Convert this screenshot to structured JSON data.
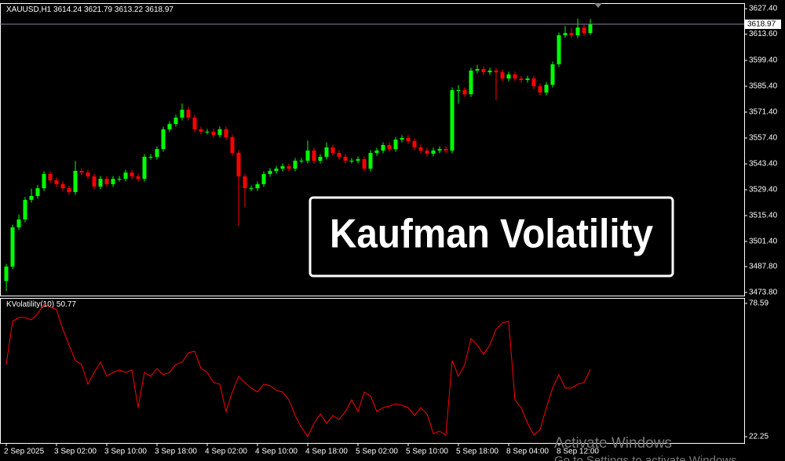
{
  "chart_data": [
    {
      "type": "candlestick",
      "title": "XAUUSD,H1",
      "annotation": "Kaufman Volatility",
      "up_color": "#00ff00",
      "down_color": "#ff0000",
      "grid": false,
      "ylim": [
        3472.1,
        3630.4
      ],
      "yticks": [
        {
          "value": 3627.4,
          "label": "3627.40"
        },
        {
          "value": 3613.6,
          "label": "3613.60"
        },
        {
          "value": 3599.4,
          "label": "3599.40"
        },
        {
          "value": 3585.4,
          "label": "3585.40"
        },
        {
          "value": 3571.4,
          "label": "3571.40"
        },
        {
          "value": 3557.4,
          "label": "3557.40"
        },
        {
          "value": 3543.4,
          "label": "3543.40"
        },
        {
          "value": 3529.4,
          "label": "3529.40"
        },
        {
          "value": 3515.4,
          "label": "3515.40"
        },
        {
          "value": 3501.4,
          "label": "3501.40"
        },
        {
          "value": 3487.8,
          "label": "3487.80"
        },
        {
          "value": 3473.8,
          "label": "3473.80"
        }
      ],
      "open": [
        3480.0,
        3487.8,
        3509.0,
        3513.3,
        3523.9,
        3526.0,
        3530.2,
        3537.9,
        3534.5,
        3532.4,
        3530.2,
        3528.1,
        3539.6,
        3538.7,
        3536.6,
        3531.1,
        3535.3,
        3532.4,
        3535.3,
        3535.3,
        3538.7,
        3536.6,
        3535.3,
        3547.2,
        3547.2,
        3551.4,
        3562.1,
        3565.0,
        3568.4,
        3572.7,
        3568.4,
        3562.1,
        3560.8,
        3560.8,
        3559.1,
        3562.1,
        3557.8,
        3549.3,
        3536.6,
        3530.2,
        3530.2,
        3532.4,
        3537.9,
        3539.6,
        3540.8,
        3542.1,
        3540.8,
        3545.1,
        3545.1,
        3550.6,
        3545.1,
        3547.2,
        3552.3,
        3549.3,
        3547.2,
        3545.1,
        3545.1,
        3545.9,
        3540.8,
        3549.3,
        3550.6,
        3553.6,
        3551.4,
        3556.5,
        3557.4,
        3555.7,
        3552.3,
        3550.6,
        3548.9,
        3550.6,
        3551.4,
        3550.6,
        3583.3,
        3583.3,
        3581.1,
        3593.9,
        3594.7,
        3593.0,
        3593.9,
        3593.0,
        3589.6,
        3591.8,
        3589.6,
        3588.8,
        3589.6,
        3585.4,
        3582.0,
        3586.2,
        3597.3,
        3613.0,
        3614.2,
        3613.0,
        3617.2,
        3614.24
      ],
      "high": [
        3489.3,
        3510.5,
        3516.0,
        3525.4,
        3530.0,
        3532.0,
        3539.4,
        3539.4,
        3536.0,
        3533.9,
        3531.7,
        3545.0,
        3541.1,
        3540.2,
        3538.1,
        3536.8,
        3536.8,
        3536.8,
        3536.8,
        3540.2,
        3540.2,
        3538.1,
        3548.7,
        3548.7,
        3552.9,
        3563.6,
        3566.5,
        3569.9,
        3576.0,
        3574.2,
        3569.9,
        3563.6,
        3562.3,
        3562.3,
        3563.6,
        3563.6,
        3559.3,
        3550.8,
        3538.1,
        3531.7,
        3533.9,
        3539.4,
        3541.1,
        3542.3,
        3543.6,
        3543.6,
        3546.6,
        3546.6,
        3556.0,
        3552.1,
        3548.7,
        3555.0,
        3553.8,
        3550.8,
        3548.7,
        3546.6,
        3547.4,
        3547.4,
        3550.8,
        3552.1,
        3555.1,
        3555.1,
        3558.0,
        3558.9,
        3558.9,
        3557.2,
        3553.8,
        3552.1,
        3552.1,
        3552.9,
        3552.9,
        3584.8,
        3586.0,
        3584.8,
        3595.4,
        3597.0,
        3596.2,
        3595.4,
        3595.4,
        3594.5,
        3593.3,
        3593.3,
        3591.1,
        3591.1,
        3591.1,
        3586.9,
        3587.7,
        3598.8,
        3614.5,
        3618.0,
        3617.0,
        3622.0,
        3618.7,
        3621.79
      ],
      "low": [
        3474.5,
        3486.3,
        3507.5,
        3511.8,
        3522.4,
        3524.5,
        3528.7,
        3533.0,
        3530.9,
        3528.7,
        3526.6,
        3526.6,
        3537.2,
        3535.1,
        3529.6,
        3529.6,
        3530.9,
        3530.9,
        3533.8,
        3533.8,
        3535.1,
        3533.8,
        3533.8,
        3545.7,
        3545.7,
        3549.9,
        3560.6,
        3563.5,
        3566.9,
        3566.9,
        3560.6,
        3559.3,
        3559.3,
        3557.6,
        3557.6,
        3556.3,
        3547.8,
        3510.0,
        3520.0,
        3528.7,
        3528.7,
        3530.9,
        3536.4,
        3538.1,
        3539.3,
        3539.3,
        3539.3,
        3543.6,
        3543.6,
        3543.6,
        3543.6,
        3545.7,
        3547.8,
        3545.7,
        3543.6,
        3543.6,
        3543.6,
        3539.3,
        3539.3,
        3547.8,
        3549.1,
        3549.9,
        3549.9,
        3555.0,
        3554.2,
        3550.8,
        3549.1,
        3547.4,
        3547.4,
        3549.1,
        3549.1,
        3549.1,
        3576.0,
        3579.6,
        3579.6,
        3592.4,
        3591.5,
        3591.5,
        3578.0,
        3588.1,
        3588.1,
        3588.1,
        3587.3,
        3587.3,
        3583.9,
        3580.5,
        3580.5,
        3584.7,
        3595.8,
        3611.5,
        3611.5,
        3611.5,
        3612.7,
        3613.22
      ],
      "close": [
        3487.8,
        3509.0,
        3513.3,
        3523.9,
        3526.0,
        3530.2,
        3537.9,
        3534.5,
        3532.4,
        3530.2,
        3528.1,
        3539.6,
        3538.7,
        3536.6,
        3531.1,
        3535.3,
        3532.4,
        3535.3,
        3535.3,
        3538.7,
        3536.6,
        3535.3,
        3547.2,
        3547.2,
        3551.4,
        3562.1,
        3565.0,
        3568.4,
        3572.7,
        3568.4,
        3562.1,
        3560.8,
        3560.8,
        3559.1,
        3562.1,
        3557.8,
        3549.3,
        3536.6,
        3530.2,
        3530.2,
        3532.4,
        3537.9,
        3539.6,
        3540.8,
        3542.1,
        3540.8,
        3545.1,
        3545.1,
        3550.6,
        3545.1,
        3547.2,
        3552.3,
        3549.3,
        3547.2,
        3545.1,
        3545.1,
        3545.9,
        3540.8,
        3549.3,
        3550.6,
        3553.6,
        3551.4,
        3556.5,
        3557.4,
        3555.7,
        3552.3,
        3550.6,
        3548.9,
        3550.6,
        3551.4,
        3550.6,
        3583.3,
        3583.3,
        3581.1,
        3593.9,
        3594.7,
        3593.0,
        3593.9,
        3593.0,
        3589.6,
        3591.8,
        3589.6,
        3588.8,
        3589.6,
        3585.4,
        3582.0,
        3586.2,
        3597.3,
        3613.0,
        3614.2,
        3613.0,
        3617.2,
        3614.2,
        3618.97
      ]
    },
    {
      "type": "line",
      "title": "KVolatility(10)",
      "color": "#ff0000",
      "ylim": [
        19.6,
        80.9
      ],
      "yticks": [
        78.59,
        22.25
      ],
      "categories": [
        "2 Sep 2025",
        null,
        null,
        null,
        null,
        null,
        null,
        null,
        "3 Sep 02:00",
        null,
        null,
        null,
        null,
        null,
        null,
        null,
        "3 Sep 10:00",
        null,
        null,
        null,
        null,
        null,
        null,
        null,
        "3 Sep 18:00",
        null,
        null,
        null,
        null,
        null,
        null,
        null,
        "4 Sep 02:00",
        null,
        null,
        null,
        null,
        null,
        null,
        null,
        "4 Sep 10:00",
        null,
        null,
        null,
        null,
        null,
        null,
        null,
        "4 Sep 18:00",
        null,
        null,
        null,
        null,
        null,
        null,
        null,
        "5 Sep 02:00",
        null,
        null,
        null,
        null,
        null,
        null,
        null,
        "5 Sep 10:00",
        null,
        null,
        null,
        null,
        null,
        null,
        null,
        "5 Sep 18:00",
        null,
        null,
        null,
        null,
        null,
        null,
        null,
        "8 Sep 04:00",
        null,
        null,
        null,
        null,
        null,
        null,
        null,
        "8 Sep 12:00",
        null,
        null,
        null,
        null,
        null
      ],
      "values": [
        52.75,
        70.98,
        72.64,
        72.64,
        71.64,
        74.3,
        78.27,
        76.95,
        75.95,
        67.67,
        61.04,
        54.41,
        52.75,
        44.46,
        49.43,
        53.74,
        47.78,
        49.43,
        50.43,
        49.43,
        50.43,
        34.52,
        49.43,
        47.78,
        51.09,
        48.44,
        49.43,
        52.75,
        53.74,
        57.72,
        58.38,
        51.09,
        49.43,
        45.12,
        44.46,
        32.86,
        41.15,
        47.78,
        45.12,
        42.8,
        41.15,
        44.46,
        43.8,
        41.81,
        41.15,
        37.83,
        31.2,
        26.23,
        22.25,
        27.89,
        31.86,
        27.89,
        31.2,
        29.54,
        32.86,
        37.83,
        32.86,
        41.15,
        39.49,
        32.86,
        34.52,
        35.18,
        36.17,
        35.51,
        34.52,
        31.2,
        34.52,
        31.86,
        23.58,
        24.57,
        22.91,
        54.41,
        47.78,
        52.75,
        63.69,
        61.04,
        57.06,
        61.04,
        67.67,
        70.32,
        70.98,
        37.83,
        34.52,
        27.89,
        22.91,
        25.23,
        34.52,
        42.8,
        48.44,
        42.8,
        42.8,
        44.46,
        45.12,
        50.77
      ]
    }
  ],
  "watermark": {
    "line1": "Activate Windows",
    "line2": "Go to Settings to activate Windows."
  }
}
